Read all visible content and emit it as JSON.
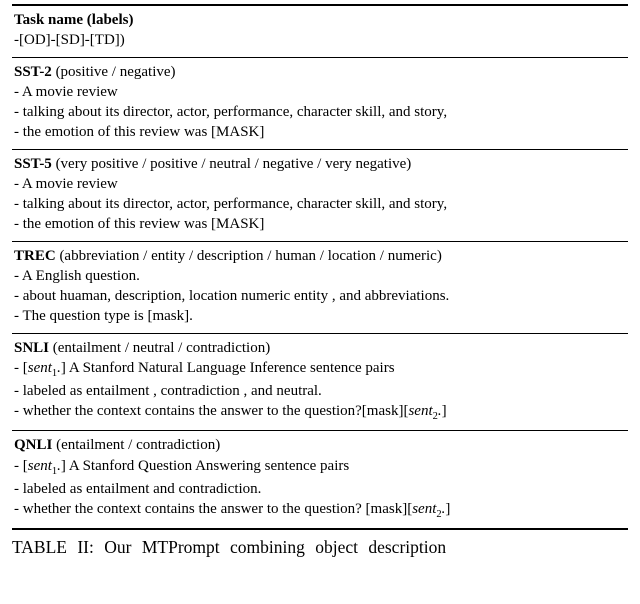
{
  "header": {
    "title": "Task name (labels)",
    "sub": "-[OD]-[SD]-[TD])"
  },
  "tasks": [
    {
      "name": "SST-2",
      "labels": "  (positive / negative)",
      "lines": [
        "- A movie review",
        "- talking about its director, actor, performance, character skill, and story,",
        "- the emotion of this review was [MASK]"
      ]
    },
    {
      "name": "SST-5",
      "labels": " (very positive / positive / neutral / negative / very negative)",
      "lines": [
        "- A movie review",
        "- talking about its director, actor, performance, character skill, and story,",
        "- the emotion of this review was [MASK]"
      ]
    },
    {
      "name": "TREC",
      "labels": " (abbreviation / entity / description / human / location / numeric)",
      "lines": [
        "- A English question.",
        "- about huaman, description, location numeric entity , and abbreviations.",
        "- The question type is [mask]."
      ]
    },
    {
      "name": "SNLI",
      "labels": " (entailment / neutral / contradiction)",
      "lines": [
        "- [sent₁.] A Stanford Natural Language Inference sentence pairs",
        "- labeled as entailment , contradiction , and neutral.",
        "- whether the context contains the answer to the question?[mask][sent₂.]"
      ],
      "italic_sents": true
    },
    {
      "name": "QNLI",
      "labels": " (entailment / contradiction)",
      "lines": [
        "- [sent₁.] A Stanford Question Answering sentence pairs",
        "- labeled as entailment and contradiction.",
        "- whether the context contains the answer to the question? [mask][sent₂.]"
      ],
      "italic_sents": true
    }
  ],
  "caption": "TABLE II: Our MTPrompt combining object description"
}
